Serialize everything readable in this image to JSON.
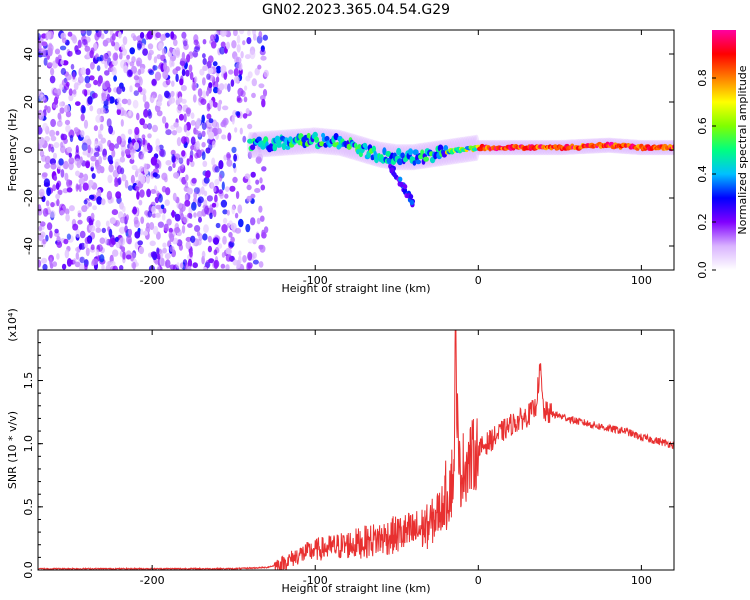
{
  "figure": {
    "title": "GN02.2023.365.04.54.G29"
  },
  "chart_data": [
    {
      "type": "heatmap",
      "xlabel": "Height of straight line (km)",
      "ylabel": "Frequency (Hz)",
      "xlim": [
        -270,
        120
      ],
      "ylim": [
        -50,
        50
      ],
      "xticks": [
        -200,
        -100,
        0,
        100
      ],
      "yticks": [
        -40,
        -20,
        0,
        20,
        40
      ],
      "colorbar": {
        "label": "Normalized spectral amplitude",
        "range": [
          0,
          1
        ],
        "ticks": [
          "0.0",
          "0.2",
          "0.4",
          "0.6",
          "0.8"
        ],
        "colormap": [
          "#ffffff",
          "#d9b3ff",
          "#8000ff",
          "#0000ff",
          "#00c0ff",
          "#00ff80",
          "#80ff00",
          "#ffff00",
          "#ff8000",
          "#ff0000",
          "#ff00a0"
        ]
      },
      "noise_region_x": [
        -270,
        -130
      ],
      "ridge": [
        {
          "x": -140,
          "y": 2
        },
        {
          "x": -120,
          "y": 3
        },
        {
          "x": -100,
          "y": 4
        },
        {
          "x": -85,
          "y": 3
        },
        {
          "x": -70,
          "y": 0
        },
        {
          "x": -60,
          "y": -2
        },
        {
          "x": -50,
          "y": -3
        },
        {
          "x": -40,
          "y": -3
        },
        {
          "x": -30,
          "y": -2
        },
        {
          "x": -20,
          "y": -1
        },
        {
          "x": -10,
          "y": 0
        },
        {
          "x": 0,
          "y": 1
        },
        {
          "x": 20,
          "y": 1
        },
        {
          "x": 50,
          "y": 1
        },
        {
          "x": 80,
          "y": 2
        },
        {
          "x": 100,
          "y": 1
        },
        {
          "x": 120,
          "y": 1
        }
      ]
    },
    {
      "type": "line",
      "xlabel": "Height of straight line (km)",
      "ylabel": "SNR (10 * v/v)",
      "y_scale_note": "(x10⁴)",
      "xlim": [
        -270,
        120
      ],
      "ylim": [
        0,
        1.9
      ],
      "xticks": [
        -200,
        -100,
        0,
        100
      ],
      "yticks": [
        "0.0",
        "0.5",
        "1.0",
        "1.5"
      ],
      "color": "#e83030",
      "points": [
        {
          "x": -270,
          "y": 0.01
        },
        {
          "x": -200,
          "y": 0.01
        },
        {
          "x": -150,
          "y": 0.01
        },
        {
          "x": -130,
          "y": 0.02
        },
        {
          "x": -120,
          "y": 0.05
        },
        {
          "x": -110,
          "y": 0.12
        },
        {
          "x": -100,
          "y": 0.16
        },
        {
          "x": -90,
          "y": 0.18
        },
        {
          "x": -80,
          "y": 0.2
        },
        {
          "x": -70,
          "y": 0.22
        },
        {
          "x": -60,
          "y": 0.25
        },
        {
          "x": -50,
          "y": 0.28
        },
        {
          "x": -40,
          "y": 0.3
        },
        {
          "x": -30,
          "y": 0.35
        },
        {
          "x": -22,
          "y": 0.5
        },
        {
          "x": -18,
          "y": 0.65
        },
        {
          "x": -15,
          "y": 0.75
        },
        {
          "x": -14,
          "y": 1.85
        },
        {
          "x": -12,
          "y": 0.75
        },
        {
          "x": -10,
          "y": 0.8
        },
        {
          "x": 0,
          "y": 0.95
        },
        {
          "x": 10,
          "y": 1.05
        },
        {
          "x": 20,
          "y": 1.15
        },
        {
          "x": 30,
          "y": 1.22
        },
        {
          "x": 35,
          "y": 1.28
        },
        {
          "x": 38,
          "y": 1.6
        },
        {
          "x": 40,
          "y": 1.25
        },
        {
          "x": 50,
          "y": 1.22
        },
        {
          "x": 60,
          "y": 1.18
        },
        {
          "x": 70,
          "y": 1.15
        },
        {
          "x": 80,
          "y": 1.12
        },
        {
          "x": 90,
          "y": 1.1
        },
        {
          "x": 100,
          "y": 1.05
        },
        {
          "x": 110,
          "y": 1.02
        },
        {
          "x": 120,
          "y": 0.99
        }
      ]
    }
  ]
}
